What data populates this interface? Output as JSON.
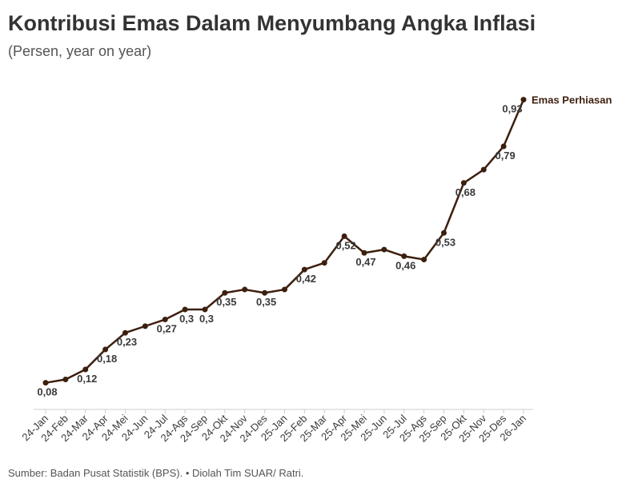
{
  "chart_data": {
    "type": "line",
    "title": "Kontribusi Emas Dalam Menyumbang Angka Inflasi",
    "subtitle": "(Persen, year on year)",
    "source": "Sumber: Badan Pusat Statistik (BPS). • Diolah Tim SUAR/ Ratri.",
    "categories": [
      "24-Jan",
      "24-Feb",
      "24-Mar",
      "24-Apr",
      "24-Mei",
      "24-Jun",
      "24-Jul",
      "24-Ags",
      "24-Sep",
      "24-Okt",
      "24-Nov",
      "24-Des",
      "25-Jan",
      "25-Feb",
      "25-Mar",
      "25-Apr",
      "25-Mei",
      "25-Jun",
      "25-Jul",
      "25-Ags",
      "25-Sep",
      "25-Okt",
      "25-Nov",
      "25-Des",
      "26-Jan"
    ],
    "ylim": [
      0,
      1
    ],
    "series": [
      {
        "name": "Emas Perhiasan",
        "color": "#3d1f0e",
        "values": [
          0.08,
          0.09,
          0.12,
          0.18,
          0.23,
          0.25,
          0.27,
          0.3,
          0.3,
          0.35,
          0.36,
          0.35,
          0.36,
          0.42,
          0.44,
          0.52,
          0.47,
          0.48,
          0.46,
          0.45,
          0.53,
          0.68,
          0.72,
          0.79,
          0.93
        ],
        "value_labels": [
          "0,08",
          null,
          "0,12",
          "0,18",
          "0,23",
          null,
          "0,27",
          "0,3",
          "0,3",
          "0,35",
          null,
          "0,35",
          null,
          "0,42",
          null,
          "0,52",
          "0,47",
          null,
          "0,46",
          null,
          "0,53",
          "0,68",
          null,
          "0,79",
          "0,93"
        ]
      }
    ]
  }
}
